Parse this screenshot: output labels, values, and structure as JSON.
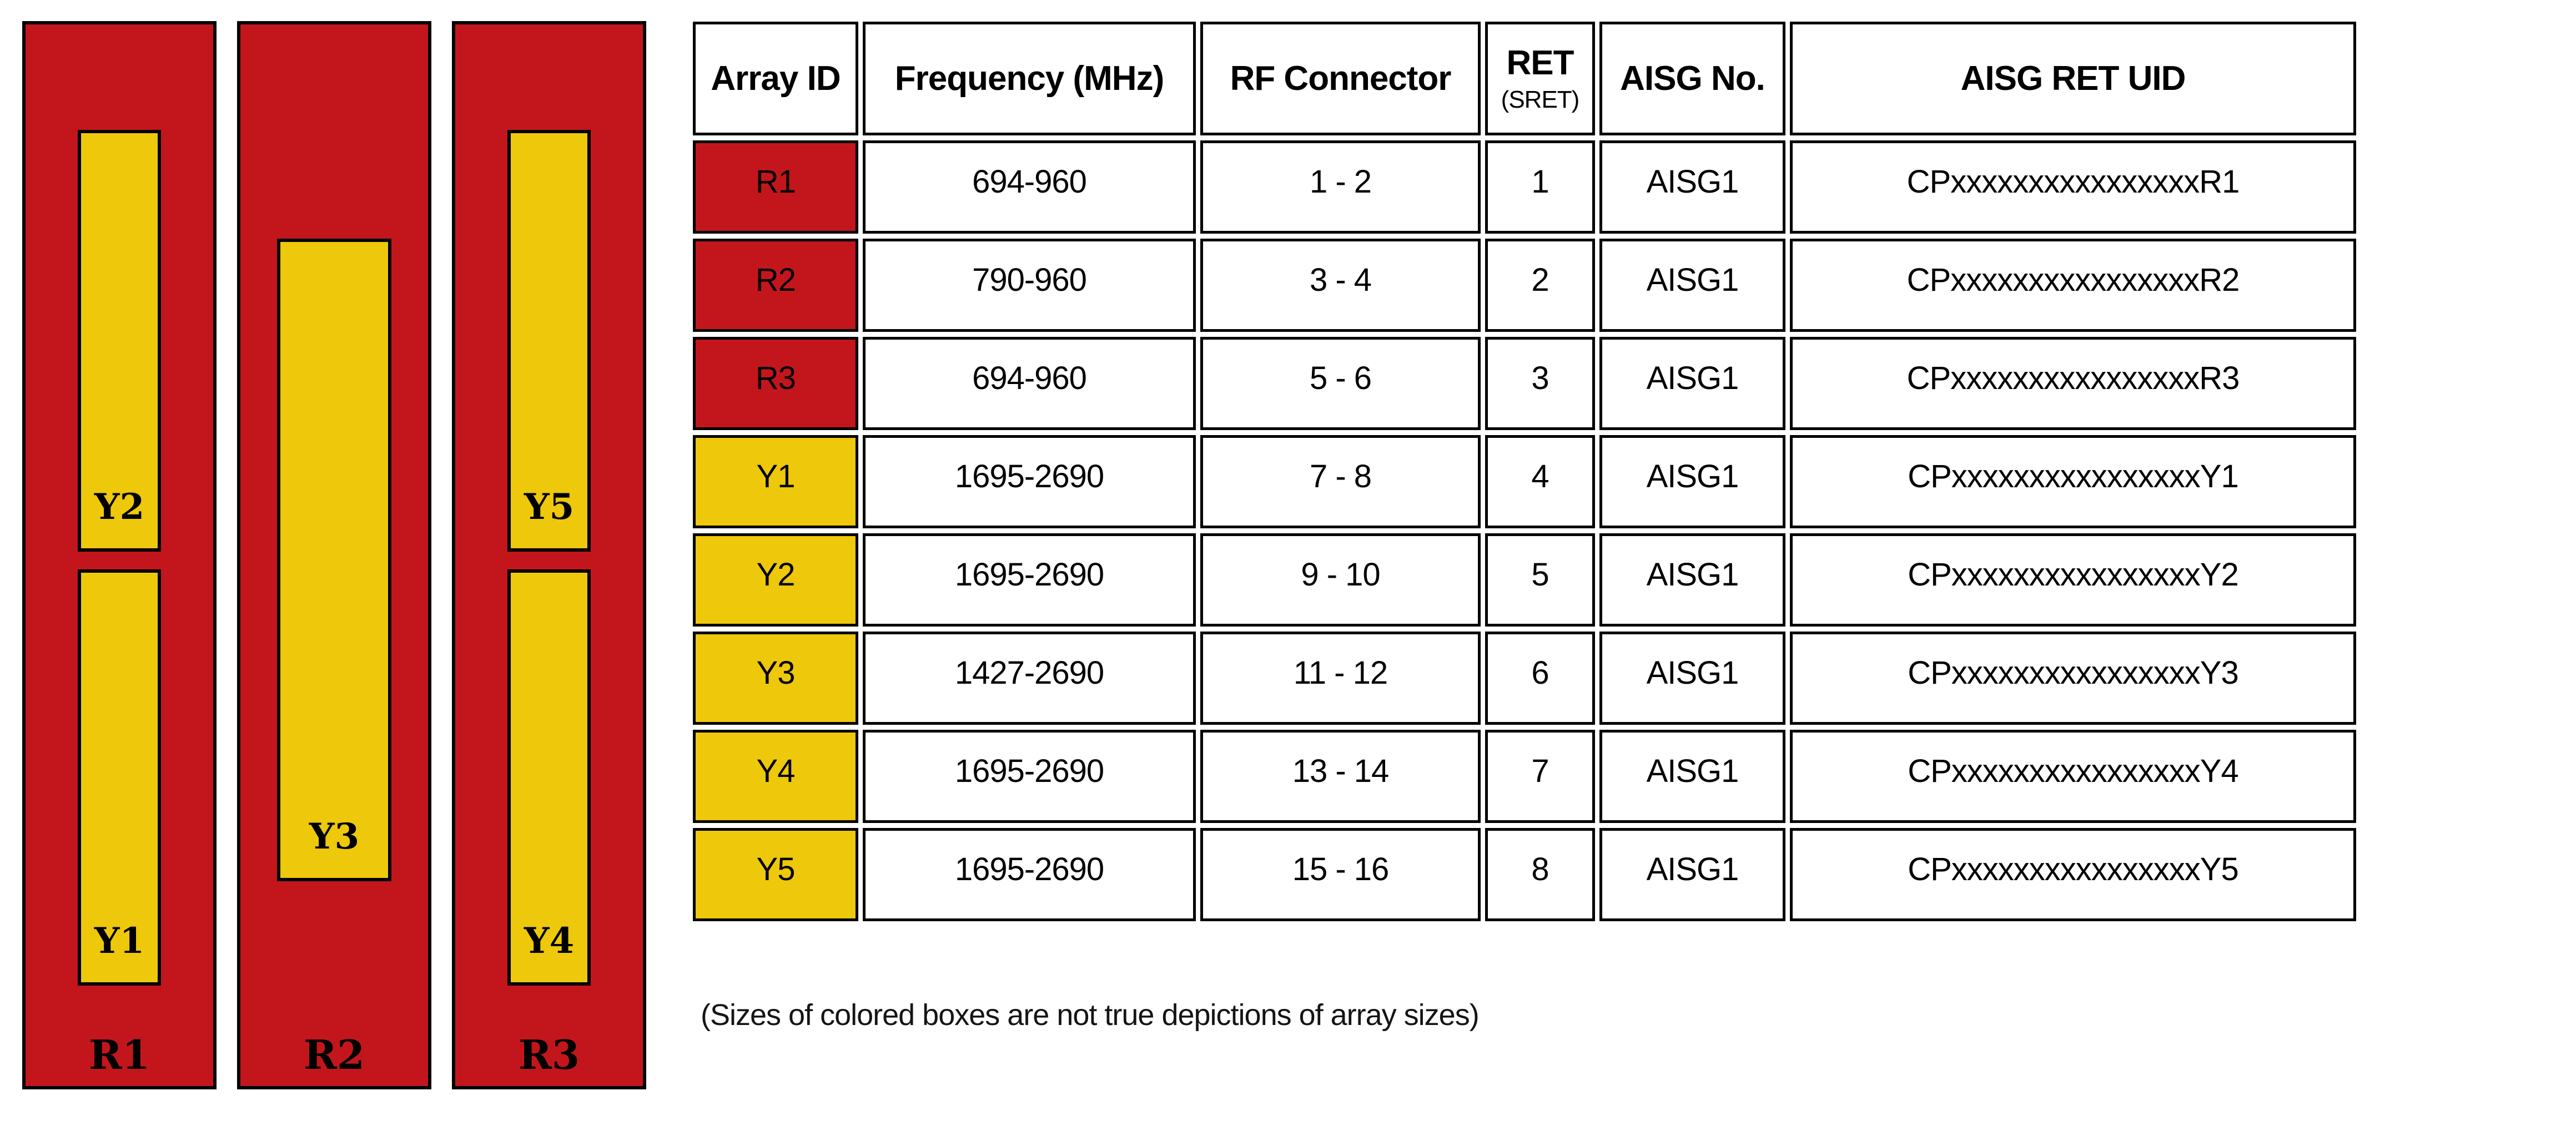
{
  "colors": {
    "red": "#C3161C",
    "yellow": "#EEC80A"
  },
  "diagram": {
    "bars": [
      {
        "label": "R1",
        "arrays": [
          {
            "label": "Y2",
            "pos": "top"
          },
          {
            "label": "Y1",
            "pos": "bottom"
          }
        ]
      },
      {
        "label": "R2",
        "arrays": [
          {
            "label": "Y3",
            "pos": "mid"
          }
        ]
      },
      {
        "label": "R3",
        "arrays": [
          {
            "label": "Y5",
            "pos": "top"
          },
          {
            "label": "Y4",
            "pos": "bottom"
          }
        ]
      }
    ]
  },
  "table": {
    "columns": [
      "Array ID",
      "Frequency (MHz)",
      "RF Connector",
      {
        "line1": "RET",
        "line2": "(SRET)"
      },
      "AISG No.",
      "AISG RET UID"
    ],
    "rows": [
      {
        "array_id": "R1",
        "color": "red",
        "frequency": "694-960",
        "rf_connector": "1 - 2",
        "ret": "1",
        "aisg_no": "AISG1",
        "aisg_ret_uid": "CPxxxxxxxxxxxxxxxxR1"
      },
      {
        "array_id": "R2",
        "color": "red",
        "frequency": "790-960",
        "rf_connector": "3 - 4",
        "ret": "2",
        "aisg_no": "AISG1",
        "aisg_ret_uid": "CPxxxxxxxxxxxxxxxxR2"
      },
      {
        "array_id": "R3",
        "color": "red",
        "frequency": "694-960",
        "rf_connector": "5 - 6",
        "ret": "3",
        "aisg_no": "AISG1",
        "aisg_ret_uid": "CPxxxxxxxxxxxxxxxxR3"
      },
      {
        "array_id": "Y1",
        "color": "yellow",
        "frequency": "1695-2690",
        "rf_connector": "7 - 8",
        "ret": "4",
        "aisg_no": "AISG1",
        "aisg_ret_uid": "CPxxxxxxxxxxxxxxxxY1"
      },
      {
        "array_id": "Y2",
        "color": "yellow",
        "frequency": "1695-2690",
        "rf_connector": "9 - 10",
        "ret": "5",
        "aisg_no": "AISG1",
        "aisg_ret_uid": "CPxxxxxxxxxxxxxxxxY2"
      },
      {
        "array_id": "Y3",
        "color": "yellow",
        "frequency": "1427-2690",
        "rf_connector": "11 - 12",
        "ret": "6",
        "aisg_no": "AISG1",
        "aisg_ret_uid": "CPxxxxxxxxxxxxxxxxY3"
      },
      {
        "array_id": "Y4",
        "color": "yellow",
        "frequency": "1695-2690",
        "rf_connector": "13 - 14",
        "ret": "7",
        "aisg_no": "AISG1",
        "aisg_ret_uid": "CPxxxxxxxxxxxxxxxxY4"
      },
      {
        "array_id": "Y5",
        "color": "yellow",
        "frequency": "1695-2690",
        "rf_connector": "15 - 16",
        "ret": "8",
        "aisg_no": "AISG1",
        "aisg_ret_uid": "CPxxxxxxxxxxxxxxxxY5"
      }
    ]
  },
  "note": "(Sizes of colored boxes are not true depictions of array sizes)"
}
